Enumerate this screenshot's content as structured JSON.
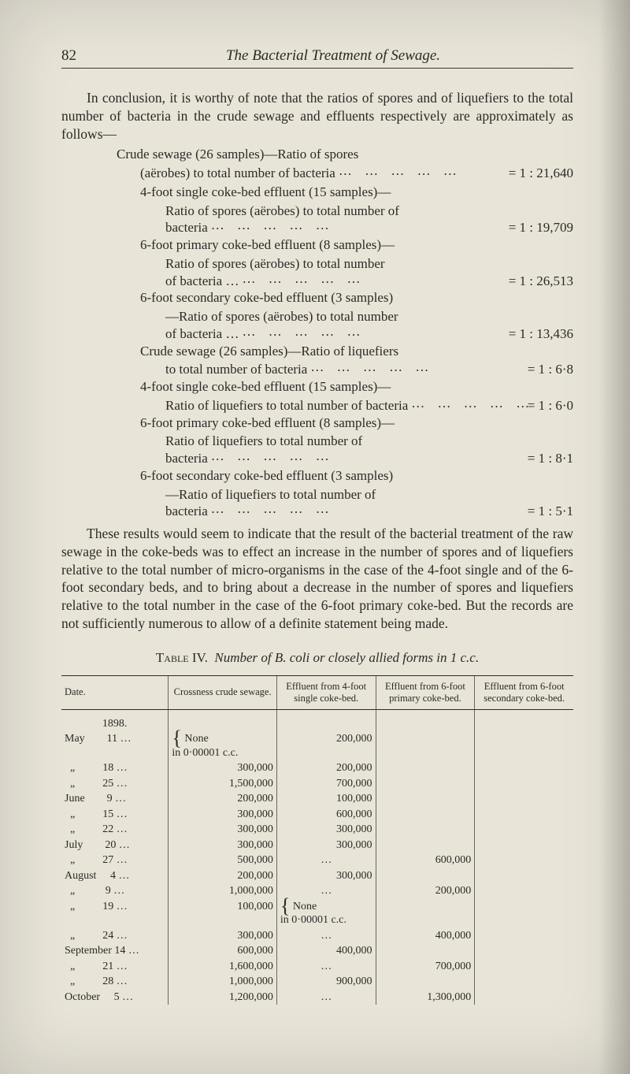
{
  "header": {
    "page_number": "82",
    "running_title": "The Bacterial Treatment of Sewage."
  },
  "intro_paragraph": "In conclusion, it is worthy of note that the ratios of spores and of liquefiers to the total number of bacteria in the crude sewage and effluents respectively are approximately as follows—",
  "ratio_heading": "Crude sewage (26 samples)—Ratio of spores",
  "ratios": [
    {
      "label": "(aërobes) to total number of bacteria",
      "value": "= 1 : 21,640"
    },
    {
      "label": "4-foot single coke-bed effluent (15 samples)—",
      "sub": "Ratio of spores (aërobes) to total number of",
      "cont": "bacteria",
      "value": "= 1 : 19,709"
    },
    {
      "label": "6-foot primary coke-bed effluent (8 samples)—",
      "sub": "Ratio of spores (aërobes) to total number",
      "cont": "of bacteria …",
      "value": "= 1 : 26,513"
    },
    {
      "label": "6-foot secondary coke-bed effluent (3 samples)",
      "sub": "—Ratio of spores (aërobes) to total number",
      "cont": "of bacteria …",
      "value": "= 1 : 13,436"
    },
    {
      "label": "Crude sewage (26 samples)—Ratio of liquefiers",
      "cont": "to total number of bacteria",
      "value": "= 1 : 6·8"
    },
    {
      "label": "4-foot single coke-bed effluent (15 samples)—",
      "cont": "Ratio of liquefiers to total number of bacteria",
      "value": "= 1 : 6·0"
    },
    {
      "label": "6-foot primary coke-bed effluent (8 samples)—",
      "sub": "Ratio of liquefiers to total number of",
      "cont": "bacteria",
      "value": "= 1 : 8·1"
    },
    {
      "label": "6-foot secondary coke-bed effluent (3 samples)",
      "sub": "—Ratio of liquefiers to total number of",
      "cont": "bacteria",
      "value": "= 1 : 5·1"
    }
  ],
  "discussion_paragraph": "These results would seem to indicate that the result of the bacterial treatment of the raw sewage in the coke-beds was to effect an increase in the number of spores and of liquefiers relative to the total number of micro-organisms in the case of the 4-foot single and of the 6-foot secondary beds, and to bring about a decrease in the number of spores and liquefiers relative to the total number in the case of the 6-foot primary coke-bed. But the records are not sufficiently numerous to allow of a definite statement being made.",
  "table_caption_prefix": "Table IV.",
  "table_caption_rest": "Number of B. coli or closely allied forms in 1 c.c.",
  "table": {
    "columns": [
      "Date.",
      "Crossness crude sewage.",
      "Effluent from 4-foot single coke-bed.",
      "Effluent from 6-foot primary coke-bed.",
      "Effluent from 6-foot secondary coke-bed."
    ],
    "year": "1898.",
    "rows": [
      {
        "date": "May        11 …",
        "cross_special": "None\nin 0·00001 c.c.",
        "c3": "200,000",
        "c4": "",
        "c5": "",
        "brace_open": true
      },
      {
        "date": "  „          18 …",
        "c2": "300,000",
        "c3": "200,000",
        "c4": "",
        "c5": ""
      },
      {
        "date": "  „          25 …",
        "c2": "1,500,000",
        "c3": "700,000",
        "c4": "",
        "c5": ""
      },
      {
        "date": "June        9 …",
        "c2": "200,000",
        "c3": "100,000",
        "c4": "",
        "c5": ""
      },
      {
        "date": "  „          15 …",
        "c2": "300,000",
        "c3": "600,000",
        "c4": "",
        "c5": ""
      },
      {
        "date": "  „          22 …",
        "c2": "300,000",
        "c3": "300,000",
        "c4": "",
        "c5": ""
      },
      {
        "date": "July        20 …",
        "c2": "300,000",
        "c3": "300,000",
        "c4": "",
        "c5": ""
      },
      {
        "date": "  „          27 …",
        "c2": "500,000",
        "c3": "…",
        "c4": "600,000",
        "c5": ""
      },
      {
        "date": "August     4 …",
        "c2": "200,000",
        "c3": "300,000",
        "c4": "",
        "c5": ""
      },
      {
        "date": "  „           9 …",
        "c2": "1,000,000",
        "c3": "…",
        "c4": "200,000",
        "c5": ""
      },
      {
        "date": "  „          19 …",
        "c2": "100,000",
        "c3_special": "None\nin 0·00001 c.c.",
        "c4": "",
        "c5": "",
        "brace_open3": true
      },
      {
        "date": "  „          24 …",
        "c2": "300,000",
        "c3": "…",
        "c4": "400,000",
        "c5": ""
      },
      {
        "date": "September 14 …",
        "c2": "600,000",
        "c3": "400,000",
        "c4": "",
        "c5": ""
      },
      {
        "date": "  „          21 …",
        "c2": "1,600,000",
        "c3": "…",
        "c4": "700,000",
        "c5": ""
      },
      {
        "date": "  „          28 …",
        "c2": "1,000,000",
        "c3": "900,000",
        "c4": "",
        "c5": ""
      },
      {
        "date": "October     5 …",
        "c2": "1,200,000",
        "c3": "…",
        "c4": "1,300,000",
        "c5": ""
      }
    ]
  }
}
